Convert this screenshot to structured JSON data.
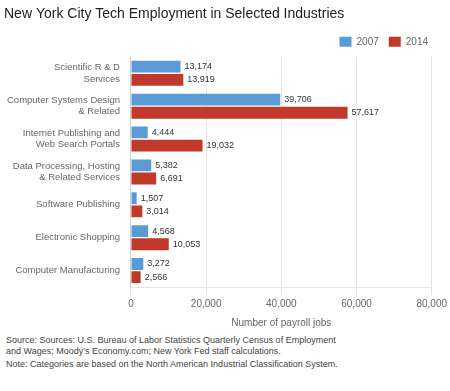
{
  "chart_data": {
    "type": "bar",
    "orientation": "horizontal",
    "title": "New York City Tech Employment in Selected Industries",
    "categories": [
      "Scientific R & D Services",
      "Computer Systems Design & Related",
      "Internet Publishing and Web Search Portals",
      "Data Processing, Hosting & Related Services",
      "Software Publishing",
      "Electronic Shopping",
      "Computer Manufacturing"
    ],
    "series": [
      {
        "name": "2007",
        "color": "#5b9bd5",
        "values": [
          13174,
          39706,
          4444,
          5382,
          1507,
          4568,
          3272
        ],
        "value_labels": [
          "13,174",
          "39,706",
          "4,444",
          "5,382",
          "1,507",
          "4,568",
          "3,272"
        ]
      },
      {
        "name": "2014",
        "color": "#c0392b",
        "values": [
          13919,
          57617,
          19032,
          6691,
          3014,
          10053,
          2566
        ],
        "value_labels": [
          "13,919",
          "57,617",
          "19,032",
          "6,691",
          "3,014",
          "10,053",
          "2,566"
        ]
      }
    ],
    "xlabel": "Number of payroll jobs",
    "xlim": [
      0,
      80000
    ],
    "xticks": [
      0,
      {
        "value": 20000,
        "label": "20,000"
      },
      {
        "value": 40000,
        "label": "40,000"
      },
      {
        "value": 60000,
        "label": "60,000"
      },
      {
        "value": 80000,
        "label": "80,000"
      }
    ],
    "grid": true,
    "legend": "upper right",
    "data_labels": true,
    "annotations": [
      "Source: Sources: U.S. Bureau of Labor Statistics Quarterly Census of Employment\nand Wages; Moody’s Economy.com; New York Fed staff calculations.",
      "Note:  Categories are based on the North American Industrial Classification System."
    ]
  }
}
